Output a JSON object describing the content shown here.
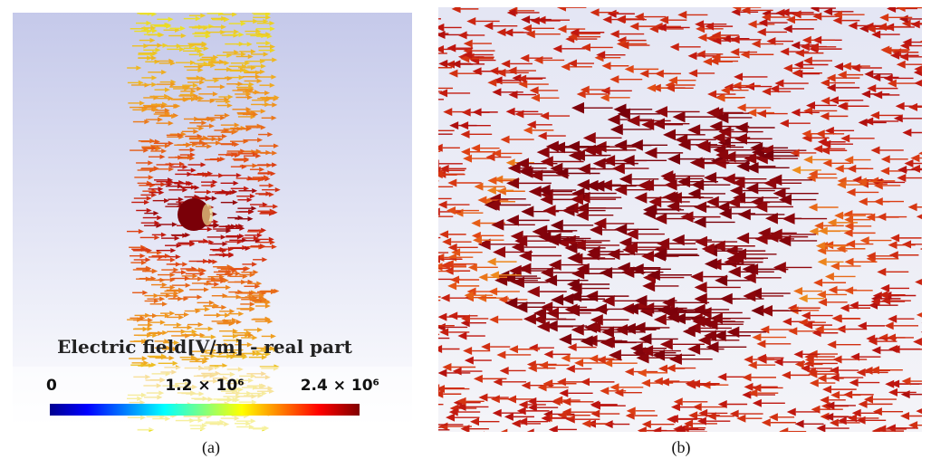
{
  "panels": [
    {
      "title": "Electric field[V/m] - real part",
      "colorbar": {
        "range": [
          0,
          2400000
        ],
        "ticks": [
          0,
          {
            "value": 1200000,
            "label": "1.2 × 10⁶"
          },
          {
            "value": 2400000,
            "label": "2.4 × 10⁶"
          }
        ]
      },
      "caption": "(a)"
    },
    {
      "caption": "(b)"
    }
  ]
}
